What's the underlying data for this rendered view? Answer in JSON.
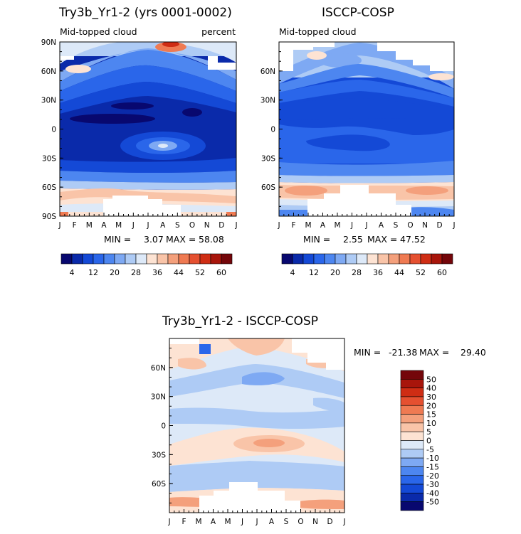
{
  "chart_data": [
    {
      "type": "heatmap",
      "title": "Try3b_Yr1-2 (yrs 0001-0002)",
      "subtitle_left": "Mid-topped cloud",
      "subtitle_right": "percent",
      "x_ticks": [
        "J",
        "F",
        "M",
        "A",
        "M",
        "J",
        "J",
        "A",
        "S",
        "O",
        "N",
        "D",
        "J"
      ],
      "y_ticks": [
        "90N",
        "60N",
        "30N",
        "0",
        "30S",
        "60S",
        "90S"
      ],
      "stats": {
        "min_label": "MIN =",
        "min": "3.07",
        "max_label": "MAX =",
        "max": "58.08"
      },
      "colorbar_labels": [
        "4",
        "12",
        "20",
        "28",
        "36",
        "44",
        "52",
        "60"
      ]
    },
    {
      "type": "heatmap",
      "title": "ISCCP-COSP",
      "subtitle_left": "Mid-topped cloud",
      "x_ticks": [
        "J",
        "F",
        "M",
        "A",
        "M",
        "J",
        "J",
        "A",
        "S",
        "O",
        "N",
        "D",
        "J"
      ],
      "y_ticks": [
        "60N",
        "30N",
        "0",
        "30S",
        "60S"
      ],
      "stats": {
        "min_label": "MIN =",
        "min": "2.55",
        "max_label": "MAX =",
        "max": "47.52"
      },
      "colorbar_labels": [
        "4",
        "12",
        "20",
        "28",
        "36",
        "44",
        "52",
        "60"
      ]
    },
    {
      "type": "heatmap",
      "title": "Try3b_Yr1-2 - ISCCP-COSP",
      "x_ticks": [
        "J",
        "F",
        "M",
        "A",
        "M",
        "J",
        "J",
        "A",
        "S",
        "O",
        "N",
        "D",
        "J"
      ],
      "y_ticks": [
        "60N",
        "30N",
        "0",
        "30S",
        "60S"
      ],
      "stats": {
        "min_label": "MIN =",
        "min": "-21.38",
        "max_label": "MAX =",
        "max": "29.40"
      },
      "colorbar_labels": [
        "50",
        "40",
        "30",
        "20",
        "15",
        "10",
        "5",
        "0",
        "-5",
        "-10",
        "-15",
        "-20",
        "-30",
        "-40",
        "-50"
      ]
    }
  ],
  "colors": {
    "seq": [
      "#08086f",
      "#0a2aaa",
      "#1449d6",
      "#2a66ea",
      "#4d86f0",
      "#7ea9f3",
      "#aecbf5",
      "#dde9f8",
      "#fde3d3",
      "#f9c4a8",
      "#f4a07c",
      "#ef7a52",
      "#e55030",
      "#cf2d14",
      "#a8150b",
      "#74060a"
    ],
    "div": [
      "#74060a",
      "#a8150b",
      "#cf2d14",
      "#e55030",
      "#ef7a52",
      "#f4a07c",
      "#f9c4a8",
      "#fde3d3",
      "#dde9f8",
      "#aecbf5",
      "#7ea9f3",
      "#4d86f0",
      "#2a66ea",
      "#1449d6",
      "#0a2aaa",
      "#08086f"
    ]
  }
}
